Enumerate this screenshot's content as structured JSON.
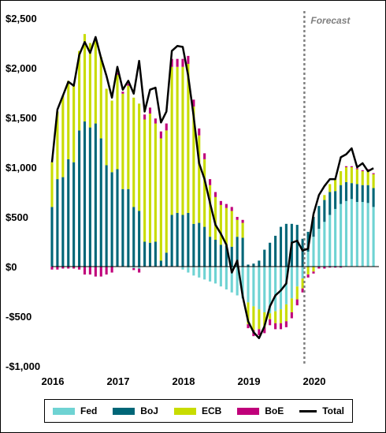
{
  "chart_data": {
    "type": "bar",
    "stacked": true,
    "yaxis": {
      "ylim": [
        -1000,
        2500
      ],
      "ticks": [
        {
          "value": 2500,
          "label": "$2,500"
        },
        {
          "value": 2000,
          "label": "$2,000"
        },
        {
          "value": 1500,
          "label": "$1,500"
        },
        {
          "value": 1000,
          "label": "$1,000"
        },
        {
          "value": 500,
          "label": "$500"
        },
        {
          "value": 0,
          "label": "$0"
        },
        {
          "value": -500,
          "label": "-$500"
        },
        {
          "value": -1000,
          "label": "-$1,000"
        }
      ]
    },
    "xaxis": {
      "start": 2016.0,
      "end": 2021.0,
      "ticks": [
        {
          "value": 2016,
          "label": "2016"
        },
        {
          "value": 2017,
          "label": "2017"
        },
        {
          "value": 2018,
          "label": "2018"
        },
        {
          "value": 2019,
          "label": "2019"
        },
        {
          "value": 2020,
          "label": "2020"
        }
      ]
    },
    "forecast_start": 2019.86,
    "annotation": "Forecast",
    "legend_position": "bottom",
    "colors": {
      "Fed": "#6fd3d3",
      "BoJ": "#006677",
      "ECB": "#c8dc00",
      "BoE": "#c0007a",
      "Total": "#000000"
    },
    "x": [
      2016.0,
      2016.083,
      2016.167,
      2016.25,
      2016.333,
      2016.417,
      2016.5,
      2016.583,
      2016.667,
      2016.75,
      2016.833,
      2016.917,
      2017.0,
      2017.083,
      2017.167,
      2017.25,
      2017.333,
      2017.417,
      2017.5,
      2017.583,
      2017.667,
      2017.75,
      2017.833,
      2017.917,
      2018.0,
      2018.083,
      2018.167,
      2018.25,
      2018.333,
      2018.417,
      2018.5,
      2018.583,
      2018.667,
      2018.75,
      2018.833,
      2018.917,
      2019.0,
      2019.083,
      2019.167,
      2019.25,
      2019.333,
      2019.417,
      2019.5,
      2019.583,
      2019.667,
      2019.75,
      2019.833,
      2019.917,
      2020.0,
      2020.083,
      2020.167,
      2020.25,
      2020.333,
      2020.417,
      2020.5,
      2020.583,
      2020.667,
      2020.75,
      2020.833,
      2020.917
    ],
    "series": [
      {
        "name": "Fed",
        "type": "bar",
        "values": [
          0,
          0,
          0,
          0,
          0,
          0,
          0,
          0,
          0,
          0,
          0,
          0,
          0,
          0,
          -10,
          -15,
          -20,
          0,
          0,
          0,
          0,
          0,
          0,
          0,
          -30,
          -60,
          -90,
          -110,
          -130,
          -150,
          -170,
          -200,
          -230,
          -260,
          -290,
          -320,
          -360,
          -400,
          -430,
          -460,
          -470,
          -450,
          -430,
          -380,
          -320,
          -200,
          -120,
          150,
          300,
          380,
          450,
          520,
          580,
          630,
          660,
          680,
          650,
          650,
          640,
          600
        ]
      },
      {
        "name": "BoJ",
        "type": "bar",
        "values": [
          600,
          880,
          900,
          1080,
          1050,
          1370,
          1460,
          1400,
          1440,
          1290,
          1020,
          950,
          980,
          780,
          780,
          600,
          560,
          250,
          240,
          250,
          60,
          140,
          520,
          540,
          520,
          540,
          430,
          440,
          400,
          300,
          270,
          220,
          210,
          200,
          300,
          290,
          20,
          30,
          60,
          170,
          240,
          310,
          400,
          430,
          430,
          420,
          280,
          200,
          200,
          230,
          220,
          230,
          180,
          190,
          190,
          160,
          180,
          170,
          180,
          190
        ]
      },
      {
        "name": "ECB",
        "type": "bar",
        "values": [
          450,
          680,
          820,
          790,
          780,
          800,
          880,
          850,
          860,
          820,
          770,
          720,
          950,
          960,
          1040,
          1100,
          1080,
          1230,
          1300,
          1190,
          1230,
          1230,
          1490,
          1470,
          1490,
          1500,
          1180,
          880,
          680,
          520,
          430,
          400,
          380,
          360,
          170,
          150,
          -220,
          -240,
          -200,
          -150,
          -60,
          -120,
          -140,
          -170,
          -140,
          -130,
          -100,
          -80,
          -50,
          0,
          50,
          80,
          120,
          140,
          150,
          160,
          150,
          140,
          150,
          140
        ]
      },
      {
        "name": "BoE",
        "type": "bar",
        "values": [
          -30,
          -30,
          -20,
          -20,
          -20,
          -30,
          -80,
          -80,
          -100,
          -100,
          -80,
          -60,
          20,
          20,
          20,
          -20,
          -40,
          50,
          60,
          50,
          70,
          70,
          80,
          80,
          80,
          80,
          70,
          70,
          60,
          60,
          50,
          40,
          40,
          40,
          30,
          30,
          -40,
          -60,
          -60,
          -60,
          -60,
          -60,
          -60,
          -60,
          -60,
          -60,
          -40,
          -30,
          -20,
          -20,
          -20,
          -10,
          -10,
          -10,
          10,
          10,
          10,
          10,
          10,
          10
        ]
      },
      {
        "name": "Total",
        "type": "line",
        "values": [
          1050,
          1580,
          1720,
          1860,
          1820,
          2130,
          2260,
          2150,
          2310,
          2100,
          1920,
          1700,
          2010,
          1780,
          1870,
          1740,
          2070,
          1560,
          1780,
          1800,
          1450,
          1560,
          2170,
          2220,
          2210,
          1920,
          1510,
          1040,
          880,
          640,
          420,
          330,
          220,
          -60,
          60,
          -300,
          -550,
          -660,
          -720,
          -600,
          -400,
          -290,
          -240,
          -170,
          240,
          260,
          160,
          180,
          530,
          720,
          810,
          880,
          880,
          1100,
          1130,
          1190,
          1000,
          1040,
          960,
          990
        ]
      }
    ]
  },
  "legend": {
    "items": [
      {
        "label": "Fed",
        "kind": "bar",
        "color": "#6fd3d3"
      },
      {
        "label": "BoJ",
        "kind": "bar",
        "color": "#006677"
      },
      {
        "label": "ECB",
        "kind": "bar",
        "color": "#c8dc00"
      },
      {
        "label": "BoE",
        "kind": "bar",
        "color": "#c0007a"
      },
      {
        "label": "Total",
        "kind": "line",
        "color": "#000000"
      }
    ]
  }
}
